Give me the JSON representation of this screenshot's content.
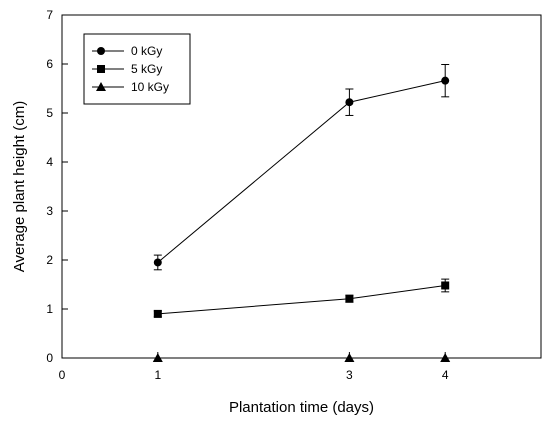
{
  "chart_data": {
    "type": "line",
    "title": "",
    "xlabel": "Plantation time (days)",
    "ylabel": "Average plant height (cm)",
    "xlim": [
      0,
      5
    ],
    "ylim": [
      0,
      7
    ],
    "x_ticks": [
      "0",
      "1",
      "3",
      "4"
    ],
    "y_ticks": [
      "0",
      "1",
      "2",
      "3",
      "4",
      "5",
      "6",
      "7"
    ],
    "x_categories": [
      "1",
      "3",
      "4"
    ],
    "grid": false,
    "legend_position": "top-left",
    "series": [
      {
        "name": "0 kGy",
        "marker": "circle",
        "values": [
          1.95,
          5.22,
          5.66
        ],
        "errors": [
          0.15,
          0.27,
          0.33
        ]
      },
      {
        "name": "5 kGy",
        "marker": "square",
        "values": [
          0.9,
          1.21,
          1.48
        ],
        "errors": [
          0.06,
          0.07,
          0.13
        ]
      },
      {
        "name": "10 kGy",
        "marker": "triangle",
        "values": [
          0,
          0,
          0
        ],
        "errors": [
          0,
          0,
          0
        ]
      }
    ],
    "colors": {
      "line": "#000000",
      "marker": "#000000"
    }
  }
}
